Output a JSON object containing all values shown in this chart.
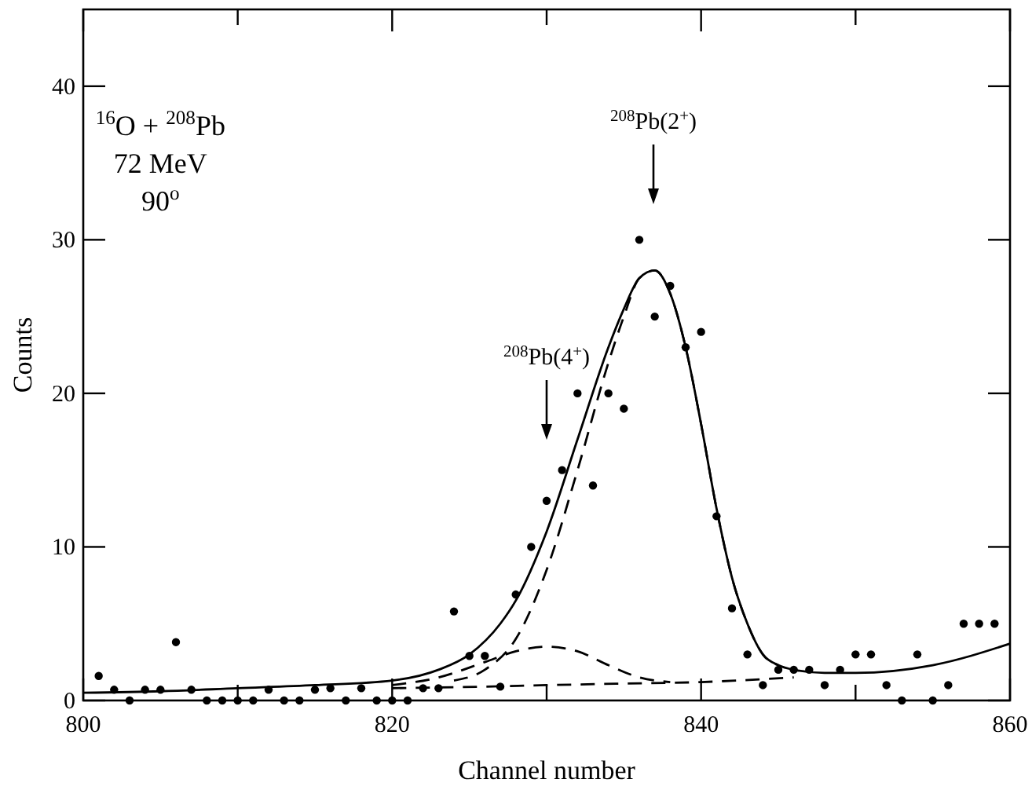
{
  "chart_data": {
    "type": "scatter",
    "xlabel": "Channel number",
    "ylabel": "Counts",
    "xlim": [
      800,
      860
    ],
    "ylim": [
      0,
      45
    ],
    "xticks": [
      800,
      {
        "value": 810,
        "label": null
      },
      820,
      {
        "value": 830,
        "label": null
      },
      840,
      {
        "value": 850,
        "label": null
      },
      860
    ],
    "yticks": [
      0,
      10,
      20,
      30,
      40
    ],
    "grid": false,
    "series": [
      {
        "color": "#000000",
        "marker": "circle",
        "x": [
          801,
          802,
          803,
          804,
          805,
          806,
          807,
          808,
          809,
          810,
          811,
          812,
          813,
          814,
          815,
          816,
          817,
          818,
          819,
          820,
          821,
          822,
          823,
          824,
          825,
          826,
          827,
          828,
          829,
          830,
          831,
          832,
          833,
          834,
          835,
          836,
          837,
          838,
          839,
          840,
          841,
          842,
          843,
          844,
          845,
          846,
          847,
          848,
          849,
          850,
          851,
          852,
          853,
          854,
          855,
          856,
          857,
          858,
          859
        ],
        "values": [
          1.6,
          0.7,
          0,
          0.7,
          0.7,
          3.8,
          0.7,
          0,
          0,
          0,
          0,
          0.7,
          0,
          0,
          0.7,
          0.8,
          0,
          0.8,
          0,
          0,
          0,
          0.8,
          0.8,
          5.8,
          2.9,
          2.9,
          0.9,
          6.9,
          10,
          13,
          15,
          20,
          14,
          20,
          19,
          30,
          25,
          27,
          23,
          24,
          12,
          6,
          3,
          1,
          2,
          2,
          2,
          1,
          2,
          3,
          3,
          1,
          0,
          3,
          0,
          1,
          5,
          5,
          5
        ]
      },
      {
        "type": "line",
        "color": "#000000",
        "line_style": "solid",
        "marker": "none",
        "x": [
          800,
          805,
          810,
          815,
          820,
          823,
          825,
          827,
          828,
          830,
          832,
          834,
          835,
          836,
          837,
          838,
          839,
          840,
          841,
          842,
          843,
          844,
          845,
          846,
          848,
          850,
          855,
          860
        ],
        "values": [
          0.5,
          0.6,
          0.8,
          1,
          1.3,
          2,
          3,
          5,
          6.5,
          11,
          17,
          23,
          25.5,
          27.5,
          28,
          26.5,
          23,
          18,
          12.5,
          8,
          5,
          3,
          2.3,
          2,
          1.8,
          1.8,
          2.3,
          3.7
        ]
      },
      {
        "type": "line",
        "color": "#000000",
        "line_style": "dashed",
        "marker": "none",
        "x": [
          824,
          826,
          828,
          830,
          832,
          834,
          835,
          836,
          837,
          838,
          839,
          840,
          841,
          842,
          843,
          844,
          845
        ],
        "values": [
          1.3,
          2,
          4,
          8.5,
          15,
          22,
          25,
          27.5,
          28,
          26.5,
          23,
          18,
          12.5,
          8,
          5,
          3,
          2.3
        ]
      },
      {
        "type": "line",
        "color": "#000000",
        "line_style": "dashed",
        "marker": "none",
        "x": [
          820,
          823,
          826,
          828,
          830,
          832,
          834,
          836,
          838
        ],
        "values": [
          1,
          1.5,
          2.5,
          3.2,
          3.5,
          3.2,
          2.3,
          1.5,
          1.2
        ]
      },
      {
        "type": "line",
        "color": "#000000",
        "line_style": "dashed",
        "marker": "none",
        "x": [
          820,
          826,
          830,
          835,
          840,
          846
        ],
        "values": [
          0.8,
          0.9,
          1,
          1.1,
          1.2,
          1.5
        ]
      }
    ],
    "annotations": [
      "$^{16}$O + $^{208}$Pb",
      "72 MeV",
      "90$^{o}$",
      "$^{208}$Pb(2$^{+}$)",
      "$^{208}$Pb(4$^{+}$)"
    ]
  }
}
